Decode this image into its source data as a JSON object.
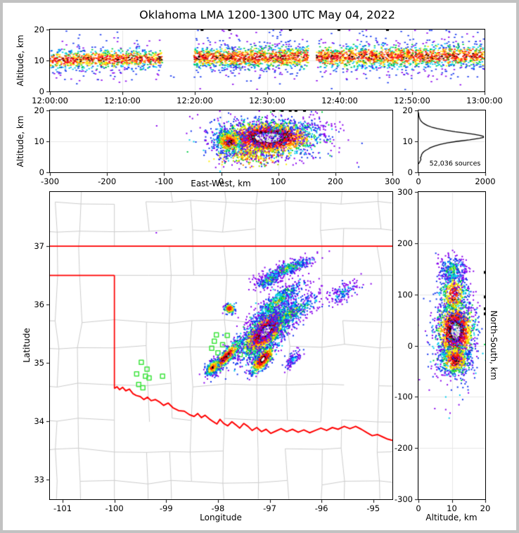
{
  "title": "Oklahoma LMA 1200-1300 UTC May 04, 2022",
  "frame_color": "#c2c2c2",
  "grid_color": "#e7e7e7",
  "palette_colors": {
    "white": "#ffffff",
    "lightgray": "#dddddd",
    "gray": "#999999",
    "black": "#000000",
    "darkred": "#990000",
    "crimson": "#ee0033",
    "red": "#ff2200",
    "orange": "#ff8800",
    "yellow": "#ffee00",
    "ygreen": "#aadd00",
    "green": "#00cc44",
    "cyan": "#00cbee",
    "blue": "#1133ee",
    "purple": "#8800ee"
  },
  "map_colors": {
    "county": "#cbcbcb",
    "state_border": "#ff0000",
    "station": "#3ce43c"
  },
  "chart_data": [
    {
      "id": "time_height",
      "type": "scatter",
      "xlabel": "",
      "ylabel": "Altitude, km",
      "xlim": [
        0,
        60
      ],
      "ylim": [
        0,
        20
      ],
      "x_ticks": [
        0,
        10,
        20,
        30,
        40,
        50,
        60
      ],
      "x_tick_labels": [
        "12:00:00",
        "12:10:00",
        "12:20:00",
        "12:30:00",
        "12:40:00",
        "12:50:00",
        "13:00:00"
      ],
      "y_ticks": [
        0,
        10,
        20
      ],
      "y_tick_labels": [
        "0",
        "10",
        "20"
      ],
      "segments": [
        {
          "t0": 0,
          "t1": 15.5,
          "center0": 10.2,
          "center1": 10.6,
          "spread": 1.5,
          "n": 950
        },
        {
          "t0": 19.9,
          "t1": 35.7,
          "center0": 10.9,
          "center1": 11.1,
          "spread": 1.7,
          "n": 1300
        },
        {
          "t0": 36.8,
          "t1": 60,
          "center0": 11.1,
          "center1": 11.5,
          "spread": 1.8,
          "n": 1700
        }
      ],
      "stray_points": [
        {
          "x": 16.7,
          "y": 5.0,
          "color": "blue"
        },
        {
          "x": 17.1,
          "y": 4.6,
          "color": "blue"
        }
      ],
      "top_dashes": [
        21.0,
        24.8,
        33.2,
        39.9,
        46.6
      ]
    },
    {
      "id": "east_west",
      "type": "scatter",
      "xlabel": "East-West, km",
      "ylabel": "Altitude, km",
      "xlim": [
        -300,
        300
      ],
      "ylim": [
        0,
        20
      ],
      "x_ticks": [
        -300,
        -200,
        -100,
        0,
        100,
        200,
        300
      ],
      "x_tick_labels": [
        "-300",
        "-200",
        "-100",
        "0",
        "100",
        "200",
        "300"
      ],
      "y_ticks": [
        0,
        10,
        20
      ],
      "y_tick_labels": [
        "0",
        "10",
        "20"
      ],
      "clusters": [
        {
          "cx": 82,
          "cy": 11.2,
          "sx": 38,
          "sy": 2.4,
          "angle": 0,
          "n": 2200,
          "palette": "core",
          "dshift": -0.25
        },
        {
          "cx": 14,
          "cy": 9.8,
          "sx": 13,
          "sy": 2.1,
          "angle": 0,
          "n": 480,
          "palette": "core",
          "dshift": 0.42
        },
        {
          "cx": 55,
          "cy": 5.5,
          "sx": 26,
          "sy": 1.6,
          "angle": 0,
          "n": 260,
          "palette": "warmfringe",
          "dshift": 0
        },
        {
          "cx": 110,
          "cy": 14.2,
          "sx": 42,
          "sy": 1.7,
          "angle": 0,
          "n": 240,
          "palette": "coolmix",
          "dshift": 0.9
        },
        {
          "cx": 85,
          "cy": 10.5,
          "sx": 58,
          "sy": 4.6,
          "angle": 0,
          "n": 420,
          "palette": "fringe",
          "dshift": 0
        }
      ],
      "stray_points": [
        {
          "x": -113,
          "y": 15,
          "color": "purple"
        }
      ],
      "top_dashes": [
        92,
        107,
        121,
        131,
        146
      ]
    },
    {
      "id": "source_histogram",
      "type": "line",
      "xlabel": "",
      "ylabel": "",
      "annotation": "52,036 sources",
      "xlim": [
        0,
        2000
      ],
      "ylim": [
        0,
        20
      ],
      "x_ticks": [
        0,
        2000
      ],
      "x_tick_labels": [
        "0",
        "2000"
      ],
      "y_ticks": [
        0,
        10,
        20
      ],
      "y_tick_labels": [
        "0",
        "10",
        "20"
      ],
      "profile_alt": [
        2.7,
        3.2,
        3.7,
        4.2,
        4.7,
        5.2,
        5.7,
        6.2,
        6.7,
        7.1,
        7.5,
        7.8,
        8.1,
        8.5,
        9.0,
        9.5,
        10.0,
        10.5,
        11.0,
        11.3,
        11.6,
        11.9,
        12.3,
        12.7,
        13.1,
        13.6,
        14.1,
        14.6,
        15.1,
        15.6,
        16.1,
        16.6,
        17.1,
        17.6,
        18.1,
        18.7,
        19.3
      ],
      "profile_count": [
        0,
        30,
        55,
        75,
        60,
        85,
        95,
        120,
        165,
        220,
        290,
        330,
        390,
        490,
        650,
        870,
        1160,
        1530,
        1830,
        1950,
        1945,
        1850,
        1650,
        1390,
        1100,
        810,
        570,
        395,
        270,
        185,
        120,
        75,
        48,
        28,
        14,
        5,
        0
      ]
    },
    {
      "id": "plan_view",
      "type": "scatter-map",
      "xlabel": "Longitude",
      "ylabel": "Latitude",
      "xlim": [
        -101.245,
        -94.63
      ],
      "ylim": [
        32.66,
        37.93
      ],
      "x_ticks": [
        -101,
        -100,
        -99,
        -98,
        -97,
        -96,
        -95
      ],
      "x_tick_labels": [
        "-101",
        "-100",
        "-99",
        "-98",
        "-97",
        "-96",
        "-95"
      ],
      "y_ticks": [
        33,
        34,
        35,
        36,
        37
      ],
      "y_tick_labels": [
        "33",
        "34",
        "35",
        "36",
        "37"
      ],
      "state_border": {
        "lat37_lon": [
          -101.245,
          -94.63
        ],
        "lat365_lon": [
          -101.245,
          -100.0
        ],
        "lon100_lat": [
          36.5,
          34.56
        ]
      },
      "red_river": [
        [
          -100.0,
          34.56
        ],
        [
          -99.95,
          34.59
        ],
        [
          -99.9,
          34.54
        ],
        [
          -99.84,
          34.58
        ],
        [
          -99.78,
          34.52
        ],
        [
          -99.71,
          34.55
        ],
        [
          -99.64,
          34.47
        ],
        [
          -99.58,
          34.44
        ],
        [
          -99.5,
          34.42
        ],
        [
          -99.43,
          34.37
        ],
        [
          -99.36,
          34.41
        ],
        [
          -99.29,
          34.35
        ],
        [
          -99.21,
          34.37
        ],
        [
          -99.13,
          34.33
        ],
        [
          -99.05,
          34.27
        ],
        [
          -98.96,
          34.31
        ],
        [
          -98.87,
          34.23
        ],
        [
          -98.76,
          34.18
        ],
        [
          -98.65,
          34.17
        ],
        [
          -98.55,
          34.11
        ],
        [
          -98.46,
          34.08
        ],
        [
          -98.39,
          34.13
        ],
        [
          -98.32,
          34.06
        ],
        [
          -98.25,
          34.1
        ],
        [
          -98.17,
          34.04
        ],
        [
          -98.09,
          33.99
        ],
        [
          -98.02,
          33.95
        ],
        [
          -97.96,
          34.03
        ],
        [
          -97.89,
          33.96
        ],
        [
          -97.81,
          33.92
        ],
        [
          -97.73,
          33.99
        ],
        [
          -97.66,
          33.94
        ],
        [
          -97.58,
          33.88
        ],
        [
          -97.5,
          33.96
        ],
        [
          -97.42,
          33.91
        ],
        [
          -97.34,
          33.84
        ],
        [
          -97.25,
          33.89
        ],
        [
          -97.16,
          33.82
        ],
        [
          -97.07,
          33.86
        ],
        [
          -96.98,
          33.79
        ],
        [
          -96.88,
          33.83
        ],
        [
          -96.78,
          33.87
        ],
        [
          -96.67,
          33.82
        ],
        [
          -96.56,
          33.86
        ],
        [
          -96.45,
          33.81
        ],
        [
          -96.34,
          33.85
        ],
        [
          -96.23,
          33.8
        ],
        [
          -96.12,
          33.84
        ],
        [
          -96.01,
          33.88
        ],
        [
          -95.9,
          33.84
        ],
        [
          -95.79,
          33.89
        ],
        [
          -95.68,
          33.86
        ],
        [
          -95.56,
          33.91
        ],
        [
          -95.45,
          33.87
        ],
        [
          -95.34,
          33.91
        ],
        [
          -95.23,
          33.86
        ],
        [
          -95.12,
          33.8
        ],
        [
          -95.02,
          33.75
        ],
        [
          -94.92,
          33.77
        ],
        [
          -94.82,
          33.73
        ],
        [
          -94.72,
          33.69
        ],
        [
          -94.63,
          33.67
        ]
      ],
      "stations": [
        [
          -98.03,
          35.48
        ],
        [
          -97.82,
          35.47
        ],
        [
          -98.07,
          35.37
        ],
        [
          -97.91,
          35.31
        ],
        [
          -98.12,
          35.25
        ],
        [
          -98.0,
          35.17
        ],
        [
          -97.85,
          35.16
        ],
        [
          -97.57,
          35.14
        ],
        [
          -99.48,
          35.01
        ],
        [
          -99.37,
          34.89
        ],
        [
          -99.57,
          34.81
        ],
        [
          -99.4,
          34.77
        ],
        [
          -99.33,
          34.74
        ],
        [
          -99.07,
          34.77
        ],
        [
          -99.53,
          34.63
        ],
        [
          -99.45,
          34.57
        ]
      ],
      "clusters": [
        {
          "cx": -97.08,
          "cy": 35.54,
          "sx": 0.26,
          "sy": 0.11,
          "angle": 40,
          "n": 2300,
          "palette": "core",
          "dshift": -0.08
        },
        {
          "cx": -97.13,
          "cy": 35.06,
          "sx": 0.15,
          "sy": 0.06,
          "angle": 45,
          "n": 650,
          "palette": "core",
          "dshift": 0.12
        },
        {
          "cx": -97.85,
          "cy": 35.1,
          "sx": 0.21,
          "sy": 0.05,
          "angle": 42,
          "n": 560,
          "palette": "core",
          "dshift": 0.3
        },
        {
          "cx": -98.1,
          "cy": 34.92,
          "sx": 0.09,
          "sy": 0.05,
          "angle": 45,
          "n": 220,
          "palette": "core",
          "dshift": 0.6
        },
        {
          "cx": -96.65,
          "cy": 36.62,
          "sx": 0.27,
          "sy": 0.055,
          "angle": 18,
          "n": 400,
          "palette": "coolmix",
          "dshift": 0.5
        },
        {
          "cx": -96.85,
          "cy": 36.05,
          "sx": 0.3,
          "sy": 0.08,
          "angle": 35,
          "n": 520,
          "palette": "coolmix",
          "dshift": 0.4
        },
        {
          "cx": -96.6,
          "cy": 35.85,
          "sx": 0.3,
          "sy": 0.09,
          "angle": 30,
          "n": 500,
          "palette": "coolmix",
          "dshift": 0.45
        },
        {
          "cx": -97.0,
          "cy": 36.42,
          "sx": 0.14,
          "sy": 0.05,
          "angle": 25,
          "n": 220,
          "palette": "coolmix",
          "dshift": 0.6
        },
        {
          "cx": -97.77,
          "cy": 35.93,
          "sx": 0.055,
          "sy": 0.045,
          "angle": 0,
          "n": 130,
          "palette": "core",
          "dshift": 0.45
        },
        {
          "cx": -95.6,
          "cy": 36.2,
          "sx": 0.18,
          "sy": 0.08,
          "angle": 25,
          "n": 140,
          "palette": "cool",
          "dshift": 0.8
        },
        {
          "cx": -96.55,
          "cy": 35.05,
          "sx": 0.1,
          "sy": 0.05,
          "angle": 40,
          "n": 110,
          "palette": "cool",
          "dshift": 0.8
        },
        {
          "cx": -97.1,
          "cy": 35.5,
          "sx": 0.38,
          "sy": 0.18,
          "angle": 40,
          "n": 450,
          "palette": "fringe",
          "dshift": 0
        }
      ],
      "stray_points": [
        {
          "x": -99.19,
          "y": 37.23,
          "color": "purple"
        }
      ]
    },
    {
      "id": "north_south",
      "type": "scatter",
      "xlabel": "Altitude, km",
      "ylabel": "North-South, km",
      "xlim": [
        0,
        20
      ],
      "ylim": [
        -300,
        300
      ],
      "x_ticks": [
        0,
        10,
        20
      ],
      "x_tick_labels": [
        "0",
        "10",
        "20"
      ],
      "y_ticks": [
        300,
        200,
        100,
        0,
        -100,
        -200,
        -300
      ],
      "y_tick_labels": [
        "300",
        "200",
        "100",
        "0",
        "-100",
        "-200",
        "-300"
      ],
      "clusters": [
        {
          "cx": 11.2,
          "cy": 28,
          "sx": 2.5,
          "sy": 27,
          "angle": 0,
          "n": 1600,
          "palette": "core",
          "dshift": -0.2
        },
        {
          "cx": 11.0,
          "cy": -27,
          "sx": 2.3,
          "sy": 16,
          "angle": 0,
          "n": 600,
          "palette": "core",
          "dshift": 0.38
        },
        {
          "cx": 10.6,
          "cy": 100,
          "sx": 2.2,
          "sy": 22,
          "angle": 0,
          "n": 450,
          "palette": "core",
          "dshift": 0.5
        },
        {
          "cx": 10.2,
          "cy": 148,
          "sx": 2.0,
          "sy": 13,
          "angle": 0,
          "n": 280,
          "palette": "coolmix",
          "dshift": 0.6
        },
        {
          "cx": 11.0,
          "cy": 30,
          "sx": 4.5,
          "sy": 55,
          "angle": 0,
          "n": 380,
          "palette": "fringe",
          "dshift": 0
        }
      ],
      "right_dashes": [
        62,
        72,
        95,
        143
      ]
    }
  ]
}
